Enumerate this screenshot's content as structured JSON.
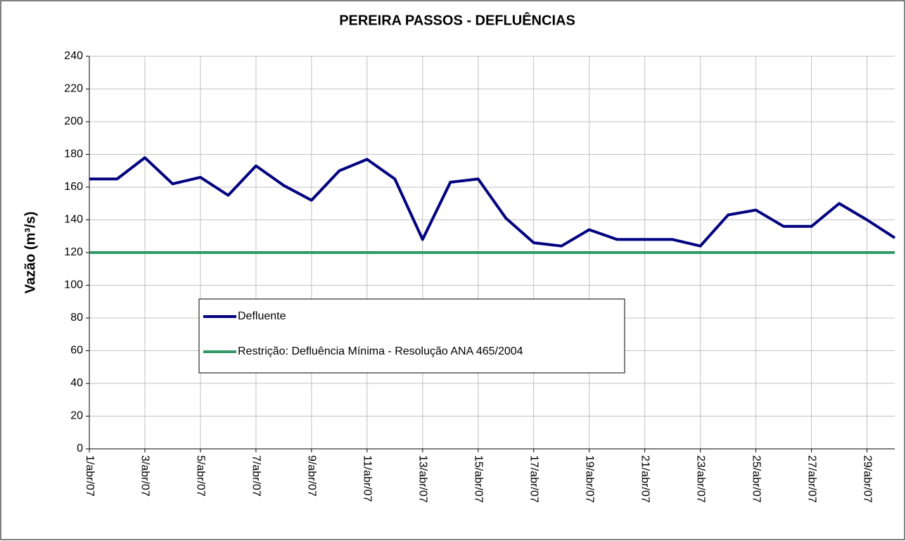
{
  "chart_data": {
    "type": "line",
    "title": "PEREIRA PASSOS - DEFLUÊNCIAS",
    "y_label": "Vazão (m³/s)",
    "categories": [
      "1/abr/07",
      null,
      "3/abr/07",
      null,
      "5/abr/07",
      null,
      "7/abr/07",
      null,
      "9/abr/07",
      null,
      "11/abr/07",
      null,
      "13/abr/07",
      null,
      "15/abr/07",
      null,
      "17/abr/07",
      null,
      "19/abr/07",
      null,
      "21/abr/07",
      null,
      "23/abr/07",
      null,
      "25/abr/07",
      null,
      "27/abr/07",
      null,
      "29/abr/07",
      null
    ],
    "series": [
      {
        "name": "Defluente",
        "color": "#000080",
        "values": [
          165,
          165,
          178,
          162,
          166,
          155,
          173,
          161,
          152,
          170,
          177,
          165,
          128,
          163,
          165,
          141,
          126,
          124,
          134,
          128,
          128,
          128,
          124,
          143,
          146,
          136,
          136,
          150,
          140,
          129
        ]
      },
      {
        "name": "Restrição: Defluência Mínima - Resolução ANA 465/2004",
        "color": "#339966",
        "values": [
          120,
          120,
          120,
          120,
          120,
          120,
          120,
          120,
          120,
          120,
          120,
          120,
          120,
          120,
          120,
          120,
          120,
          120,
          120,
          120,
          120,
          120,
          120,
          120,
          120,
          120,
          120,
          120,
          120,
          120
        ]
      }
    ],
    "ylim": [
      0,
      240
    ],
    "yticks": [
      0,
      20,
      40,
      60,
      80,
      100,
      120,
      140,
      160,
      180,
      200,
      220,
      240
    ],
    "grid": true
  }
}
